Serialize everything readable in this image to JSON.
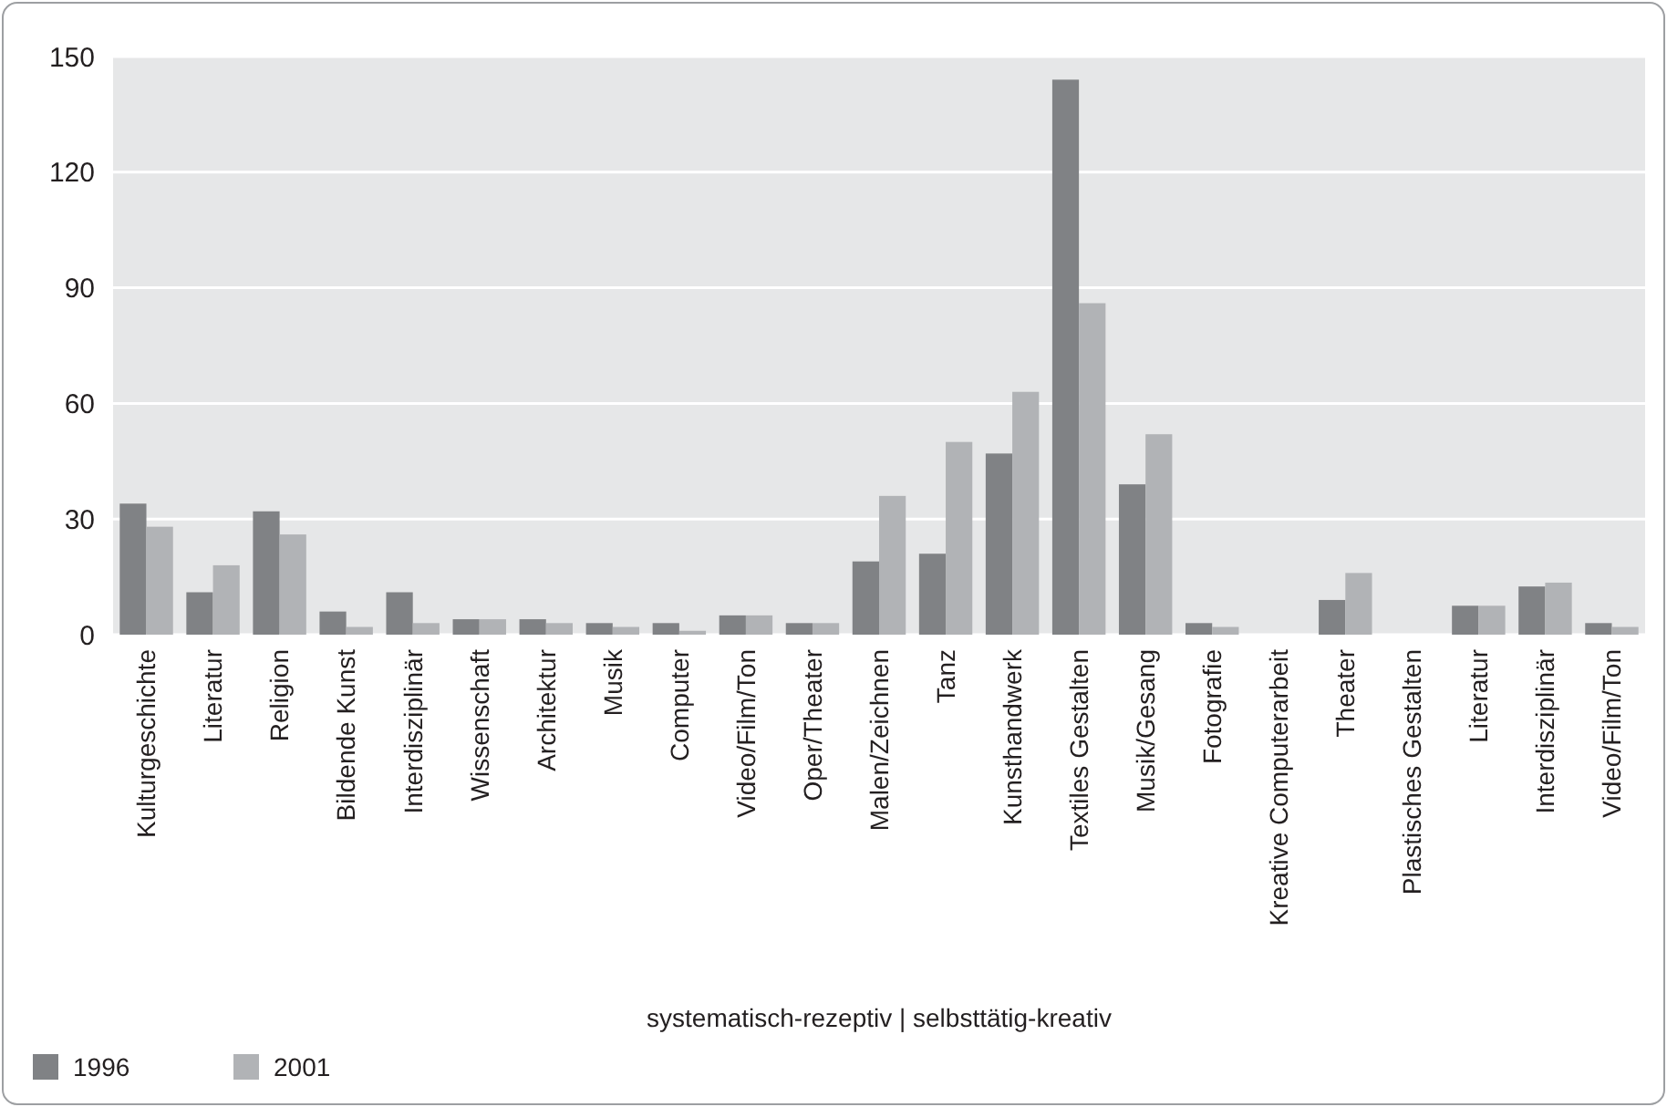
{
  "chart_data": {
    "type": "bar",
    "xlabel": "systematisch-rezeptiv | selbsttätig-kreativ",
    "categories": [
      "Kulturgeschichte",
      "Literatur",
      "Religion",
      "Bildende Kunst",
      "Interdisziplinär",
      "Wissenschaft",
      "Architektur",
      "Musik",
      "Computer",
      "Video/Film/Ton",
      "Oper/Theater",
      "Malen/Zeichnen",
      "Tanz",
      "Kunsthandwerk",
      "Textiles Gestalten",
      "Musik/Gesang",
      "Fotografie",
      "Kreative Computerarbeit",
      "Theater",
      "Plastisches Gestalten",
      "Literatur",
      "Interdisziplinär",
      "Video/Film/Ton"
    ],
    "series": [
      {
        "name": "1996",
        "color": "#808285",
        "values": [
          34,
          11,
          32,
          6,
          11,
          4,
          4,
          3,
          3,
          5,
          3,
          19,
          21,
          47,
          144,
          39,
          3,
          0,
          9,
          0,
          7.5,
          12.5,
          3
        ]
      },
      {
        "name": "2001",
        "color": "#b1b3b6",
        "values": [
          28,
          18,
          26,
          2,
          3,
          4,
          3,
          2,
          1,
          5,
          3,
          36,
          50,
          63,
          86,
          52,
          2,
          0,
          16,
          0,
          7.5,
          13.5,
          2
        ]
      }
    ],
    "ylim": [
      0,
      150
    ],
    "yticks": [
      0,
      30,
      60,
      90,
      120,
      150
    ],
    "grid": "y",
    "legend": "bottom left"
  }
}
